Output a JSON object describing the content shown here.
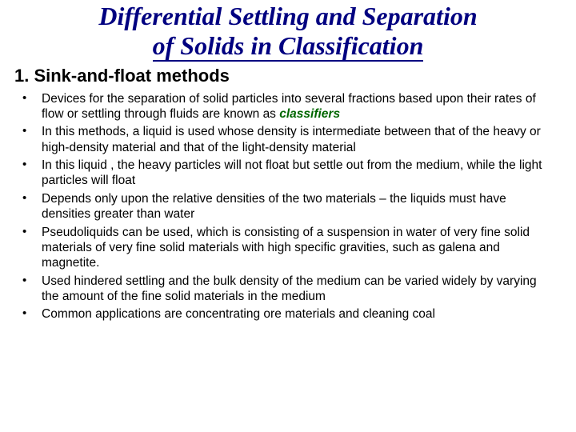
{
  "title_line1": "Differential Settling and Separation",
  "title_line2": "of Solids in Classification",
  "section_heading": "1. Sink-and-float methods",
  "bullets": [
    {
      "pre": "Devices for the separation of solid particles into several fractions based upon their rates of flow or settling through fluids are known as ",
      "kw": "classifiers",
      "post": ""
    },
    {
      "pre": "In this methods, a liquid is used whose density is intermediate between that of the heavy or high-density material and that of the light-density material",
      "kw": "",
      "post": ""
    },
    {
      "pre": "In this liquid , the heavy particles will not float but settle out from the medium, while the light particles will float",
      "kw": "",
      "post": ""
    },
    {
      "pre": "Depends only upon the relative densities of the two materials – the liquids must have densities greater than water",
      "kw": "",
      "post": ""
    },
    {
      "pre": "Pseudoliquids can be used, which is consisting of a suspension in water of very fine solid materials of very fine solid materials with high specific gravities, such as galena and magnetite.",
      "kw": "",
      "post": ""
    },
    {
      "pre": "Used hindered settling and the bulk density of the medium can be varied widely by varying the amount of the fine solid materials in the medium",
      "kw": "",
      "post": ""
    },
    {
      "pre": "Common applications are concentrating ore materials and cleaning coal",
      "kw": "",
      "post": ""
    }
  ],
  "colors": {
    "title_color": "#000080",
    "keyword_color": "#006600",
    "text_color": "#000000",
    "background": "#ffffff"
  },
  "fonts": {
    "title_family": "Times New Roman",
    "body_family": "Arial",
    "title_size_pt": 32,
    "section_size_pt": 22,
    "bullet_size_pt": 15.5
  }
}
